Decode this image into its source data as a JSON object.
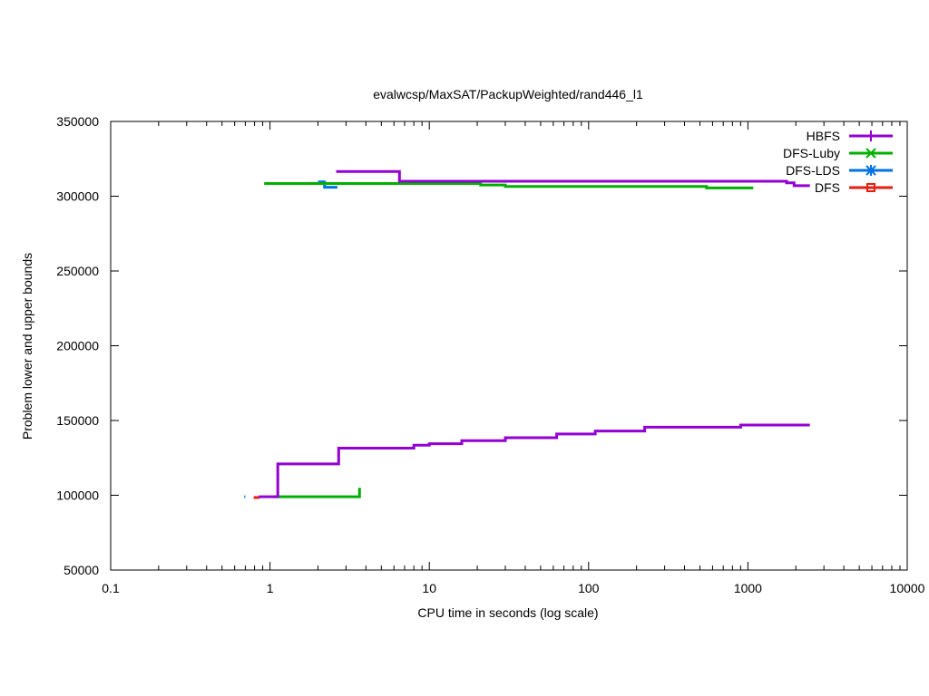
{
  "chart_data": {
    "type": "line",
    "title": "evalwcsp/MaxSAT/PackupWeighted/rand446_l1",
    "xlabel": "CPU time in seconds (log scale)",
    "ylabel": "Problem lower and upper bounds",
    "xscale": "log",
    "xlim": [
      0.1,
      10000
    ],
    "ylim": [
      50000,
      350000
    ],
    "x_ticks": [
      0.1,
      1,
      10,
      100,
      1000,
      10000
    ],
    "x_tick_labels": [
      "0.1",
      "1",
      "10",
      "100",
      "1000",
      "10000"
    ],
    "y_ticks": [
      50000,
      100000,
      150000,
      200000,
      250000,
      300000,
      350000
    ],
    "y_tick_labels": [
      "50000",
      "100000",
      "150000",
      "200000",
      "250000",
      "300000",
      "350000"
    ],
    "grid": false,
    "legend_position": "top-right",
    "series": [
      {
        "name": "HBFS",
        "color": "#9400d3",
        "marker": "plus",
        "lower": [
          [
            0.85,
            99000
          ],
          [
            1.12,
            121000
          ],
          [
            2.7,
            131500
          ],
          [
            8.0,
            133500
          ],
          [
            10.0,
            134500
          ],
          [
            16.0,
            136500
          ],
          [
            30.0,
            138500
          ],
          [
            63.0,
            141000
          ],
          [
            110.0,
            143000
          ],
          [
            225.0,
            145500
          ],
          [
            900.0,
            147000
          ],
          [
            2450.0,
            147000
          ]
        ],
        "upper": [
          [
            2.6,
            316500
          ],
          [
            6.5,
            310000
          ],
          [
            1750.0,
            309000
          ],
          [
            1950.0,
            307000
          ],
          [
            2450.0,
            307000
          ]
        ]
      },
      {
        "name": "DFS-Luby",
        "color": "#00b000",
        "marker": "x",
        "lower": [
          [
            1.05,
            99000
          ],
          [
            3.65,
            99000
          ],
          [
            3.65,
            105000
          ]
        ],
        "upper": [
          [
            0.92,
            308500
          ],
          [
            21.0,
            307500
          ],
          [
            30.0,
            306500
          ],
          [
            550.0,
            305500
          ],
          [
            1080.0,
            305500
          ]
        ]
      },
      {
        "name": "DFS-LDS",
        "color": "#0072e6",
        "marker": "star",
        "lower": [
          [
            0.69,
            99000
          ],
          [
            0.7,
            99000
          ]
        ],
        "upper": [
          [
            2.0,
            309500
          ],
          [
            2.2,
            306000
          ],
          [
            2.65,
            306000
          ]
        ]
      },
      {
        "name": "DFS",
        "color": "#e51e10",
        "marker": "square",
        "lower": [
          [
            0.79,
            98500
          ],
          [
            0.86,
            98500
          ]
        ],
        "upper": []
      }
    ]
  }
}
